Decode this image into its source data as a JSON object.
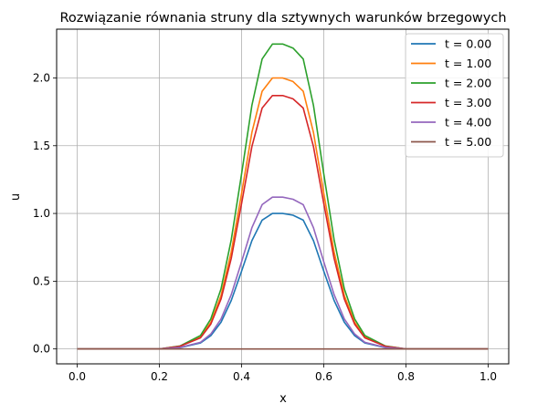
{
  "chart_data": {
    "type": "line",
    "title": "Rozwiązanie równania struny dla sztywnych warunków brzegowych",
    "xlabel": "x",
    "ylabel": "u",
    "xlim": [
      -0.05,
      1.05
    ],
    "ylim": [
      -0.11,
      2.36
    ],
    "xticks": [
      0.0,
      0.2,
      0.4,
      0.6,
      0.8,
      1.0
    ],
    "xtick_labels": [
      "0.0",
      "0.2",
      "0.4",
      "0.6",
      "0.8",
      "1.0"
    ],
    "yticks": [
      0.0,
      0.5,
      1.0,
      1.5,
      2.0
    ],
    "ytick_labels": [
      "0.0",
      "0.5",
      "1.0",
      "1.5",
      "2.0"
    ],
    "grid": true,
    "legend_position": "top-right",
    "x": [
      0.0,
      0.05,
      0.1,
      0.15,
      0.2,
      0.25,
      0.3,
      0.325,
      0.35,
      0.375,
      0.4,
      0.425,
      0.45,
      0.475,
      0.5,
      0.525,
      0.55,
      0.575,
      0.6,
      0.625,
      0.65,
      0.675,
      0.7,
      0.75,
      0.8,
      0.85,
      0.9,
      0.95,
      1.0
    ],
    "series": [
      {
        "name": "t = 0.00",
        "color": "#1f77b4",
        "values": [
          0.0,
          0.0,
          0.0,
          0.0,
          0.0,
          0.01,
          0.044,
          0.098,
          0.197,
          0.358,
          0.574,
          0.799,
          0.951,
          1.0,
          1.0,
          0.987,
          0.951,
          0.799,
          0.574,
          0.358,
          0.197,
          0.098,
          0.044,
          0.01,
          0.0,
          0.0,
          0.0,
          0.0,
          0.0
        ]
      },
      {
        "name": "t = 1.00",
        "color": "#ff7f0e",
        "values": [
          0.0,
          0.0,
          0.0,
          0.0,
          0.0,
          0.02,
          0.088,
          0.196,
          0.394,
          0.716,
          1.148,
          1.598,
          1.902,
          2.0,
          2.0,
          1.974,
          1.902,
          1.598,
          1.148,
          0.716,
          0.394,
          0.196,
          0.088,
          0.02,
          0.0,
          0.0,
          0.0,
          0.0,
          0.0
        ]
      },
      {
        "name": "t = 2.00",
        "color": "#2ca02c",
        "values": [
          0.0,
          0.0,
          0.0,
          0.0,
          0.0,
          0.022,
          0.099,
          0.221,
          0.443,
          0.806,
          1.292,
          1.798,
          2.14,
          2.25,
          2.25,
          2.221,
          2.14,
          1.798,
          1.292,
          0.806,
          0.443,
          0.221,
          0.099,
          0.022,
          0.0,
          0.0,
          0.0,
          0.0,
          0.0
        ]
      },
      {
        "name": "t = 3.00",
        "color": "#d62728",
        "values": [
          0.0,
          0.0,
          0.0,
          0.0,
          0.0,
          0.019,
          0.082,
          0.183,
          0.368,
          0.669,
          1.073,
          1.494,
          1.778,
          1.87,
          1.87,
          1.846,
          1.778,
          1.494,
          1.073,
          0.669,
          0.368,
          0.183,
          0.082,
          0.019,
          0.0,
          0.0,
          0.0,
          0.0,
          0.0
        ]
      },
      {
        "name": "t = 4.00",
        "color": "#9467bd",
        "values": [
          0.0,
          0.0,
          0.0,
          0.0,
          0.0,
          0.011,
          0.049,
          0.11,
          0.221,
          0.401,
          0.643,
          0.895,
          1.065,
          1.12,
          1.12,
          1.105,
          1.065,
          0.895,
          0.643,
          0.401,
          0.221,
          0.11,
          0.049,
          0.011,
          0.0,
          0.0,
          0.0,
          0.0,
          0.0
        ]
      },
      {
        "name": "t = 5.00",
        "color": "#8c564b",
        "values": [
          0.0,
          0.0,
          0.0,
          0.0,
          0.0,
          0.0,
          0.0,
          0.0,
          0.0,
          0.0,
          0.0,
          0.0,
          0.0,
          0.0,
          0.0,
          0.0,
          0.0,
          0.0,
          0.0,
          0.0,
          0.0,
          0.0,
          0.0,
          0.0,
          0.0,
          0.0,
          0.0,
          0.0,
          0.0
        ]
      }
    ]
  }
}
